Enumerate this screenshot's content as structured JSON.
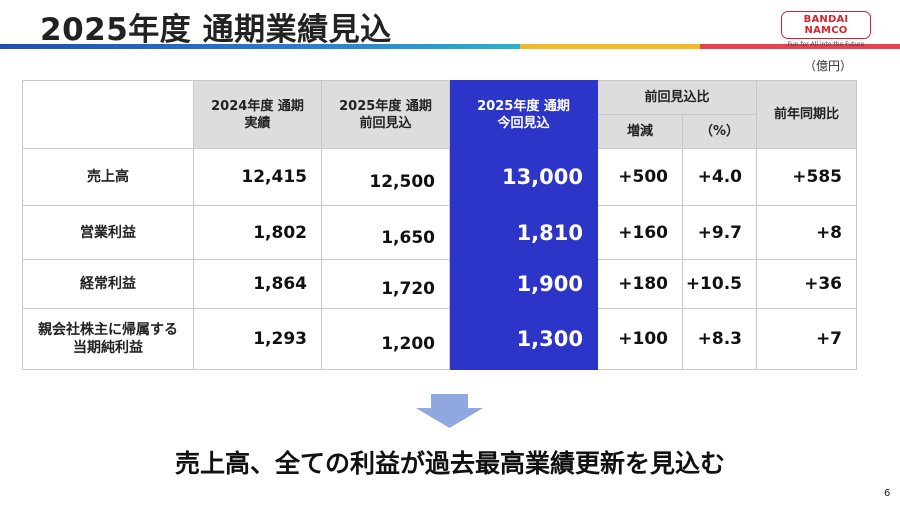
{
  "slide": {
    "title": "2025年度 通期業績見込",
    "unit": "（億円）",
    "page_number": "6",
    "headline": "売上高、全ての利益が過去最高業績更新を見込む"
  },
  "logo": {
    "brand": "BANDAI NAMCO",
    "tagline": "Fun for All into the Future"
  },
  "table": {
    "headers": {
      "col1": "2024年度 通期\n実績",
      "col2": "2025年度 通期\n前回見込",
      "col3": "2025年度 通期\n今回見込",
      "group": "前回見込比",
      "sub_change": "増減",
      "sub_pct": "（%）",
      "yoy": "前年同期比"
    },
    "rows": [
      {
        "label": "売上高",
        "fy2024": "12,415",
        "prev": "12,500",
        "curr": "13,000",
        "change": "+500",
        "pct": "+4.0",
        "yoy": "+585"
      },
      {
        "label": "営業利益",
        "fy2024": "1,802",
        "prev": "1,650",
        "curr": "1,810",
        "change": "+160",
        "pct": "+9.7",
        "yoy": "+8"
      },
      {
        "label": "経常利益",
        "fy2024": "1,864",
        "prev": "1,720",
        "curr": "1,900",
        "change": "+180",
        "pct": "+10.5",
        "yoy": "+36"
      },
      {
        "label": "親会社株主に帰属する\n当期純利益",
        "fy2024": "1,293",
        "prev": "1,200",
        "curr": "1,300",
        "change": "+100",
        "pct": "+8.3",
        "yoy": "+7"
      }
    ]
  },
  "colors": {
    "highlight": "#2d35c8",
    "header_bg": "#dddddd",
    "arrow": "#8fa8e0"
  },
  "icons": {
    "arrow": "down-arrow-icon"
  }
}
